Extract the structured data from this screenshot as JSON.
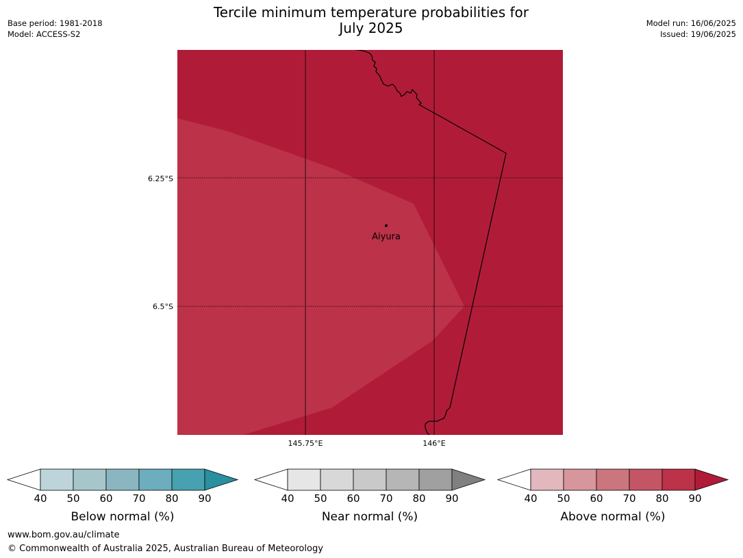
{
  "header": {
    "title_line1": "Tercile minimum temperature probabilities for",
    "title_line2": "July 2025",
    "base_period": "Base period: 1981-2018",
    "model": "Model: ACCESS-S2",
    "model_run": "Model run: 16/06/2025",
    "issued": "Issued: 19/06/2025"
  },
  "map": {
    "lat_labels": [
      "6.25°S",
      "6.5°S"
    ],
    "lon_labels": [
      "145.75°E",
      "146°E"
    ],
    "place_label": "Aiyura",
    "colors": {
      "above_80_90": "#b01c38",
      "above_70_80": "#bc3249",
      "coastline": "#000000",
      "gridline": "#000000"
    }
  },
  "legends": [
    {
      "id": "below",
      "label": "Below normal (%)",
      "ticks": [
        "40",
        "50",
        "60",
        "70",
        "80",
        "90"
      ],
      "colors": [
        "#ffffff",
        "#bdd5da",
        "#a6c6cc",
        "#8ab6c1",
        "#6caebd",
        "#46a1b0",
        "#2a8f9f"
      ]
    },
    {
      "id": "near",
      "label": "Near normal (%)",
      "ticks": [
        "40",
        "50",
        "60",
        "70",
        "80",
        "90"
      ],
      "colors": [
        "#ffffff",
        "#e6e6e6",
        "#d8d8d8",
        "#c9c9c9",
        "#b6b6b6",
        "#a0a0a0",
        "#808080"
      ]
    },
    {
      "id": "above",
      "label": "Above normal (%)",
      "ticks": [
        "40",
        "50",
        "60",
        "70",
        "80",
        "90"
      ],
      "colors": [
        "#ffffff",
        "#e2b7bd",
        "#d7959c",
        "#cb757f",
        "#c45565",
        "#bc3249",
        "#b01c38"
      ]
    }
  ],
  "footer": {
    "url": "www.bom.gov.au/climate",
    "copyright": "© Commonwealth of Australia 2025, Australian Bureau of Meteorology"
  }
}
